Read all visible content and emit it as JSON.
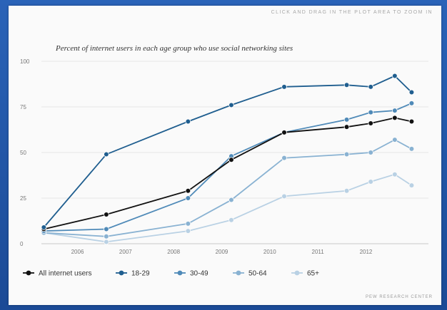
{
  "header": {
    "zoom_hint": "CLICK AND DRAG IN THE PLOT AREA TO ZOOM IN",
    "source": "PEW RESEARCH CENTER"
  },
  "chart_data": {
    "type": "line",
    "title": "Percent of internet users in each age group who use social networking sites",
    "xlabel": "",
    "ylabel": "",
    "ylim": [
      0,
      100
    ],
    "yticks": [
      0,
      25,
      50,
      75,
      100
    ],
    "xlim": [
      2005.25,
      2013.3
    ],
    "xticks": [
      2006,
      2007,
      2008,
      2009,
      2010,
      2011,
      2012
    ],
    "grid": true,
    "legend_position": "bottom",
    "series": [
      {
        "name": "All internet users",
        "color": "#111111",
        "points": [
          [
            2005.3,
            8
          ],
          [
            2006.6,
            16
          ],
          [
            2008.3,
            29
          ],
          [
            2009.2,
            46
          ],
          [
            2010.3,
            61
          ],
          [
            2011.6,
            64
          ],
          [
            2012.1,
            66
          ],
          [
            2012.6,
            69
          ],
          [
            2012.95,
            67
          ]
        ]
      },
      {
        "name": "18-29",
        "color": "#1f5e8f",
        "points": [
          [
            2005.3,
            9
          ],
          [
            2006.6,
            49
          ],
          [
            2008.3,
            67
          ],
          [
            2009.2,
            76
          ],
          [
            2010.3,
            86
          ],
          [
            2011.6,
            87
          ],
          [
            2012.1,
            86
          ],
          [
            2012.6,
            92
          ],
          [
            2012.95,
            83
          ]
        ]
      },
      {
        "name": "30-49",
        "color": "#4f8ab8",
        "points": [
          [
            2005.3,
            7
          ],
          [
            2006.6,
            8
          ],
          [
            2008.3,
            25
          ],
          [
            2009.2,
            48
          ],
          [
            2010.3,
            61
          ],
          [
            2011.6,
            68
          ],
          [
            2012.1,
            72
          ],
          [
            2012.6,
            73
          ],
          [
            2012.95,
            77
          ]
        ]
      },
      {
        "name": "50-64",
        "color": "#89b2d2",
        "points": [
          [
            2005.3,
            6
          ],
          [
            2006.6,
            4
          ],
          [
            2008.3,
            11
          ],
          [
            2009.2,
            24
          ],
          [
            2010.3,
            47
          ],
          [
            2011.6,
            49
          ],
          [
            2012.1,
            50
          ],
          [
            2012.6,
            57
          ],
          [
            2012.95,
            52
          ]
        ]
      },
      {
        "name": "65+",
        "color": "#b9d1e4",
        "points": [
          [
            2005.3,
            6
          ],
          [
            2006.6,
            1
          ],
          [
            2008.3,
            7
          ],
          [
            2009.2,
            13
          ],
          [
            2010.3,
            26
          ],
          [
            2011.6,
            29
          ],
          [
            2012.1,
            34
          ],
          [
            2012.6,
            38
          ],
          [
            2012.95,
            32
          ]
        ]
      }
    ]
  }
}
